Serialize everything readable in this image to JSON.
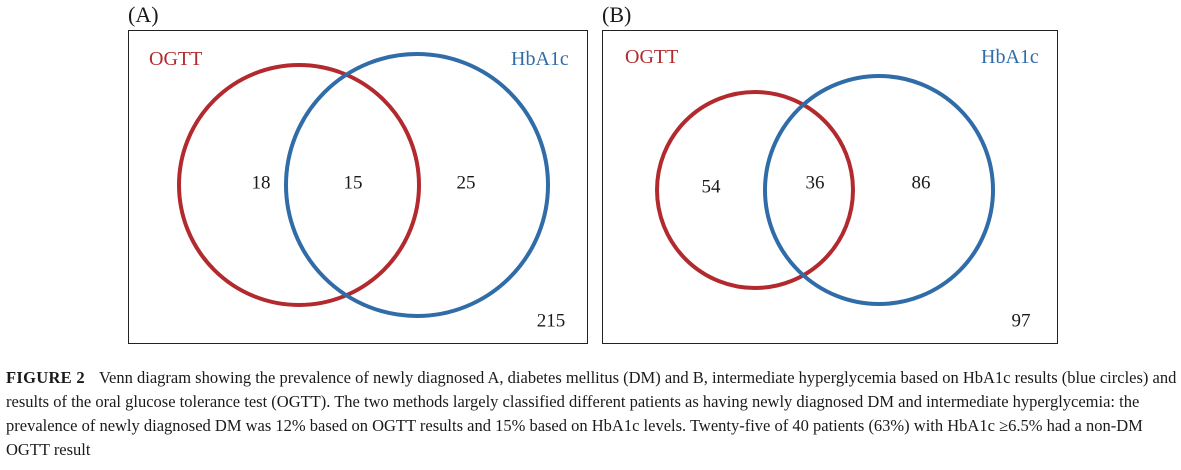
{
  "panels": [
    {
      "label": "(A)",
      "set_left": "OGTT",
      "set_right": "HbA1c",
      "only_left": "18",
      "both": "15",
      "only_right": "25",
      "neither": "215"
    },
    {
      "label": "(B)",
      "set_left": "OGTT",
      "set_right": "HbA1c",
      "only_left": "54",
      "both": "36",
      "only_right": "86",
      "neither": "97"
    }
  ],
  "colors": {
    "left_circle": "#b22a2e",
    "right_circle": "#2f6ca8"
  },
  "caption": {
    "figure_label": "FIGURE 2",
    "text": "Venn diagram showing the prevalence of newly diagnosed A, diabetes mellitus (DM) and B, intermediate hyperglycemia based on HbA1c results (blue circles) and results of the oral glucose tolerance test (OGTT). The two methods largely classified different patients as having newly diagnosed DM and intermediate hyperglycemia: the prevalence of newly diagnosed DM was 12% based on OGTT results and 15% based on HbA1c levels. Twenty-five of 40 patients (63%) with HbA1c ≥6.5% had a non-DM OGTT result"
  }
}
